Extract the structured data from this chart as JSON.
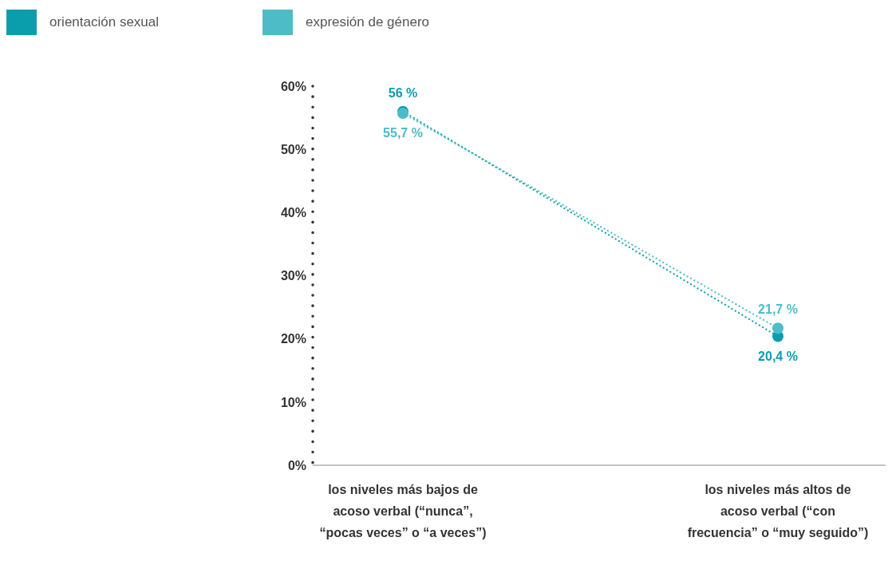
{
  "chart_data": {
    "type": "line",
    "categories": [
      "los niveles más bajos de acoso verbal (“nunca”, “pocas veces” o “a veces”)",
      "los niveles más altos de acoso verbal (“con frecuencia” o “muy seguido”)"
    ],
    "series": [
      {
        "name": "orientación sexual",
        "color": "#0a9ead",
        "values": [
          56,
          20.4
        ],
        "value_labels": [
          "56 %",
          "20,4 %"
        ]
      },
      {
        "name": "expresión de género",
        "color": "#4dbcc7",
        "values": [
          55.7,
          21.7
        ],
        "value_labels": [
          "55,7 %",
          "21,7 %"
        ]
      }
    ],
    "ylim": [
      0,
      60
    ],
    "yticks": [
      {
        "value": 0,
        "label": "0%"
      },
      {
        "value": 10,
        "label": "10%"
      },
      {
        "value": 20,
        "label": "20%"
      },
      {
        "value": 30,
        "label": "30%"
      },
      {
        "value": 40,
        "label": "40%"
      },
      {
        "value": 50,
        "label": "50%"
      },
      {
        "value": 60,
        "label": "60%"
      }
    ],
    "grid": false,
    "legend": "top left",
    "marker": "circle",
    "line_style": "dotted"
  }
}
